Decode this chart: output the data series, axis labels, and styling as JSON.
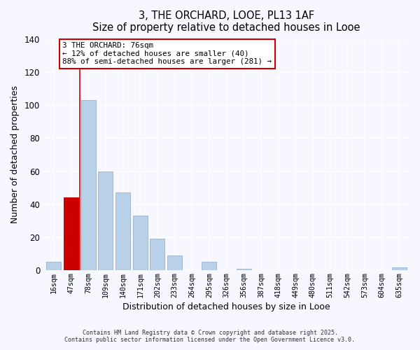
{
  "title": "3, THE ORCHARD, LOOE, PL13 1AF",
  "subtitle": "Size of property relative to detached houses in Looe",
  "xlabel": "Distribution of detached houses by size in Looe",
  "ylabel": "Number of detached properties",
  "bar_color": "#b8d0e8",
  "bar_edge_color": "#a0b8d0",
  "highlight_color": "#cc0000",
  "background_color": "#f7f7ff",
  "categories": [
    "16sqm",
    "47sqm",
    "78sqm",
    "109sqm",
    "140sqm",
    "171sqm",
    "202sqm",
    "233sqm",
    "264sqm",
    "295sqm",
    "326sqm",
    "356sqm",
    "387sqm",
    "418sqm",
    "449sqm",
    "480sqm",
    "511sqm",
    "542sqm",
    "573sqm",
    "604sqm",
    "635sqm"
  ],
  "values": [
    5,
    44,
    103,
    60,
    47,
    33,
    19,
    9,
    0,
    5,
    0,
    1,
    0,
    0,
    0,
    0,
    0,
    0,
    0,
    0,
    2
  ],
  "highlight_index": 1,
  "ylim": [
    0,
    140
  ],
  "yticks": [
    0,
    20,
    40,
    60,
    80,
    100,
    120,
    140
  ],
  "property_line_x": 2.0,
  "annotation_title": "3 THE ORCHARD: 76sqm",
  "annotation_line1": "← 12% of detached houses are smaller (40)",
  "annotation_line2": "88% of semi-detached houses are larger (281) →",
  "footnote1": "Contains HM Land Registry data © Crown copyright and database right 2025.",
  "footnote2": "Contains public sector information licensed under the Open Government Licence v3.0."
}
